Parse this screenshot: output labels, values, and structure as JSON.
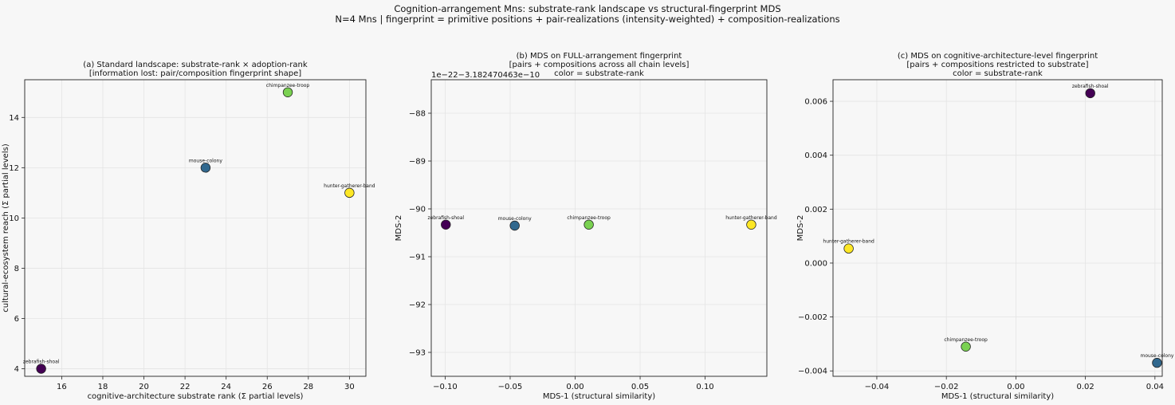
{
  "figure": {
    "suptitle": [
      "Cognition-arrangement Mns: substrate-rank landscape vs structural-fingerprint MDS",
      "N=4 Mns | fingerprint = primitive positions + pair-realizations (intensity-weighted) + composition-realizations"
    ]
  },
  "chart_data": [
    {
      "type": "scatter",
      "title": [
        "(a) Standard landscape: substrate-rank × adoption-rank",
        "[information lost: pair/composition fingerprint shape]"
      ],
      "xlabel": "cognitive-architecture substrate rank (Σ partial levels)",
      "ylabel": "cultural-ecosystem reach (Σ partial levels)",
      "xlim": [
        14.2,
        30.8
      ],
      "ylim": [
        3.7,
        15.5
      ],
      "xticks": [
        16,
        18,
        20,
        22,
        24,
        26,
        28,
        30
      ],
      "xtick_labels": [
        "16",
        "18",
        "20",
        "22",
        "24",
        "26",
        "28",
        "30"
      ],
      "yticks": [
        4,
        6,
        8,
        10,
        12,
        14
      ],
      "ytick_labels": [
        "4",
        "6",
        "8",
        "10",
        "12",
        "14"
      ],
      "offset_text": "",
      "grid": true,
      "points": [
        {
          "label": "zebrafish-shoal",
          "x": 15,
          "y": 4,
          "color": "#440154"
        },
        {
          "label": "mouse-colony",
          "x": 23,
          "y": 12,
          "color": "#31688e"
        },
        {
          "label": "chimpanzee-troop",
          "x": 27,
          "y": 15,
          "color": "#7ad151"
        },
        {
          "label": "hunter-gatherer-band",
          "x": 30,
          "y": 11,
          "color": "#fde725"
        }
      ]
    },
    {
      "type": "scatter",
      "title": [
        "(b) MDS on FULL-arrangement fingerprint",
        "[pairs + compositions across all chain levels]",
        "color = substrate-rank"
      ],
      "xlabel": "MDS-1 (structural similarity)",
      "ylabel": "MDS-2",
      "xlim": [
        -0.1107,
        0.1475
      ],
      "ylim": [
        -93.5,
        -87.3
      ],
      "xticks": [
        -0.1,
        -0.05,
        0.0,
        0.05,
        0.1
      ],
      "xtick_labels": [
        "−0.10",
        "−0.05",
        "0.00",
        "0.05",
        "0.10"
      ],
      "yticks": [
        -88,
        -89,
        -90,
        -91,
        -92,
        -93
      ],
      "ytick_labels": [
        "−88",
        "−89",
        "−90",
        "−91",
        "−92",
        "−93"
      ],
      "offset_text": "1e−22−3.182470463e−10",
      "grid": true,
      "points": [
        {
          "label": "zebrafish-shoal",
          "x": -0.0995,
          "y": -90.33,
          "color": "#440154"
        },
        {
          "label": "mouse-colony",
          "x": -0.0465,
          "y": -90.35,
          "color": "#31688e"
        },
        {
          "label": "chimpanzee-troop",
          "x": 0.0105,
          "y": -90.33,
          "color": "#7ad151"
        },
        {
          "label": "hunter-gatherer-band",
          "x": 0.1355,
          "y": -90.33,
          "color": "#fde725"
        }
      ]
    },
    {
      "type": "scatter",
      "title": [
        "(c) MDS on cognitive-architecture-level fingerprint",
        "[pairs + compositions restricted to substrate]",
        "color = substrate-rank"
      ],
      "xlabel": "MDS-1 (structural similarity)",
      "ylabel": "MDS-2",
      "xlim": [
        -0.0526,
        0.0421
      ],
      "ylim": [
        -0.0042,
        0.0068
      ],
      "xticks": [
        -0.04,
        -0.02,
        0.0,
        0.02,
        0.04
      ],
      "xtick_labels": [
        "−0.04",
        "−0.02",
        "0.00",
        "0.02",
        "0.04"
      ],
      "yticks": [
        0.006,
        0.004,
        0.002,
        0.0,
        -0.002,
        -0.004
      ],
      "ytick_labels": [
        "0.006",
        "0.004",
        "0.002",
        "0.000",
        "−0.002",
        "−0.004"
      ],
      "offset_text": "",
      "grid": true,
      "points": [
        {
          "label": "zebrafish-shoal",
          "x": 0.0214,
          "y": 0.0063,
          "color": "#440154"
        },
        {
          "label": "hunter-gatherer-band",
          "x": -0.0481,
          "y": 0.00054,
          "color": "#fde725"
        },
        {
          "label": "chimpanzee-troop",
          "x": -0.0144,
          "y": -0.0031,
          "color": "#7ad151"
        },
        {
          "label": "mouse-colony",
          "x": 0.0406,
          "y": -0.0037,
          "color": "#31688e"
        }
      ]
    }
  ]
}
